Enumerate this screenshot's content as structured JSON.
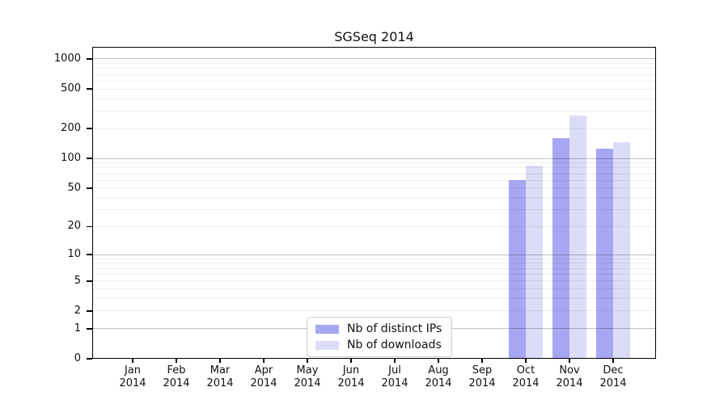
{
  "chart_data": {
    "type": "bar",
    "title": "SGSeq 2014",
    "x": [
      "Jan",
      "Feb",
      "Mar",
      "Apr",
      "May",
      "Jun",
      "Jul",
      "Aug",
      "Sep",
      "Oct",
      "Nov",
      "Dec"
    ],
    "x_year": "2014",
    "series": [
      {
        "name": "Nb of distinct IPs",
        "color": "#a6a6f2",
        "values": [
          0,
          0,
          0,
          0,
          0,
          0,
          0,
          0,
          0,
          60,
          160,
          126
        ]
      },
      {
        "name": "Nb of downloads",
        "color": "#dcdcf8",
        "values": [
          0,
          0,
          0,
          0,
          0,
          0,
          0,
          0,
          0,
          84,
          270,
          145
        ]
      }
    ],
    "y_ticks": [
      0,
      1,
      2,
      5,
      10,
      20,
      50,
      100,
      200,
      500,
      1000
    ],
    "y_scale": "log10(1+x)",
    "ylim": [
      0,
      1300
    ],
    "grid": "horizontal; major gridlines at decades (1,10,100,1000), faint minor lines between",
    "legend_position": "lower center",
    "axis_color": "#000000",
    "major_grid_color": "#c3c3c3",
    "minor_grid_color": "#ededed"
  }
}
